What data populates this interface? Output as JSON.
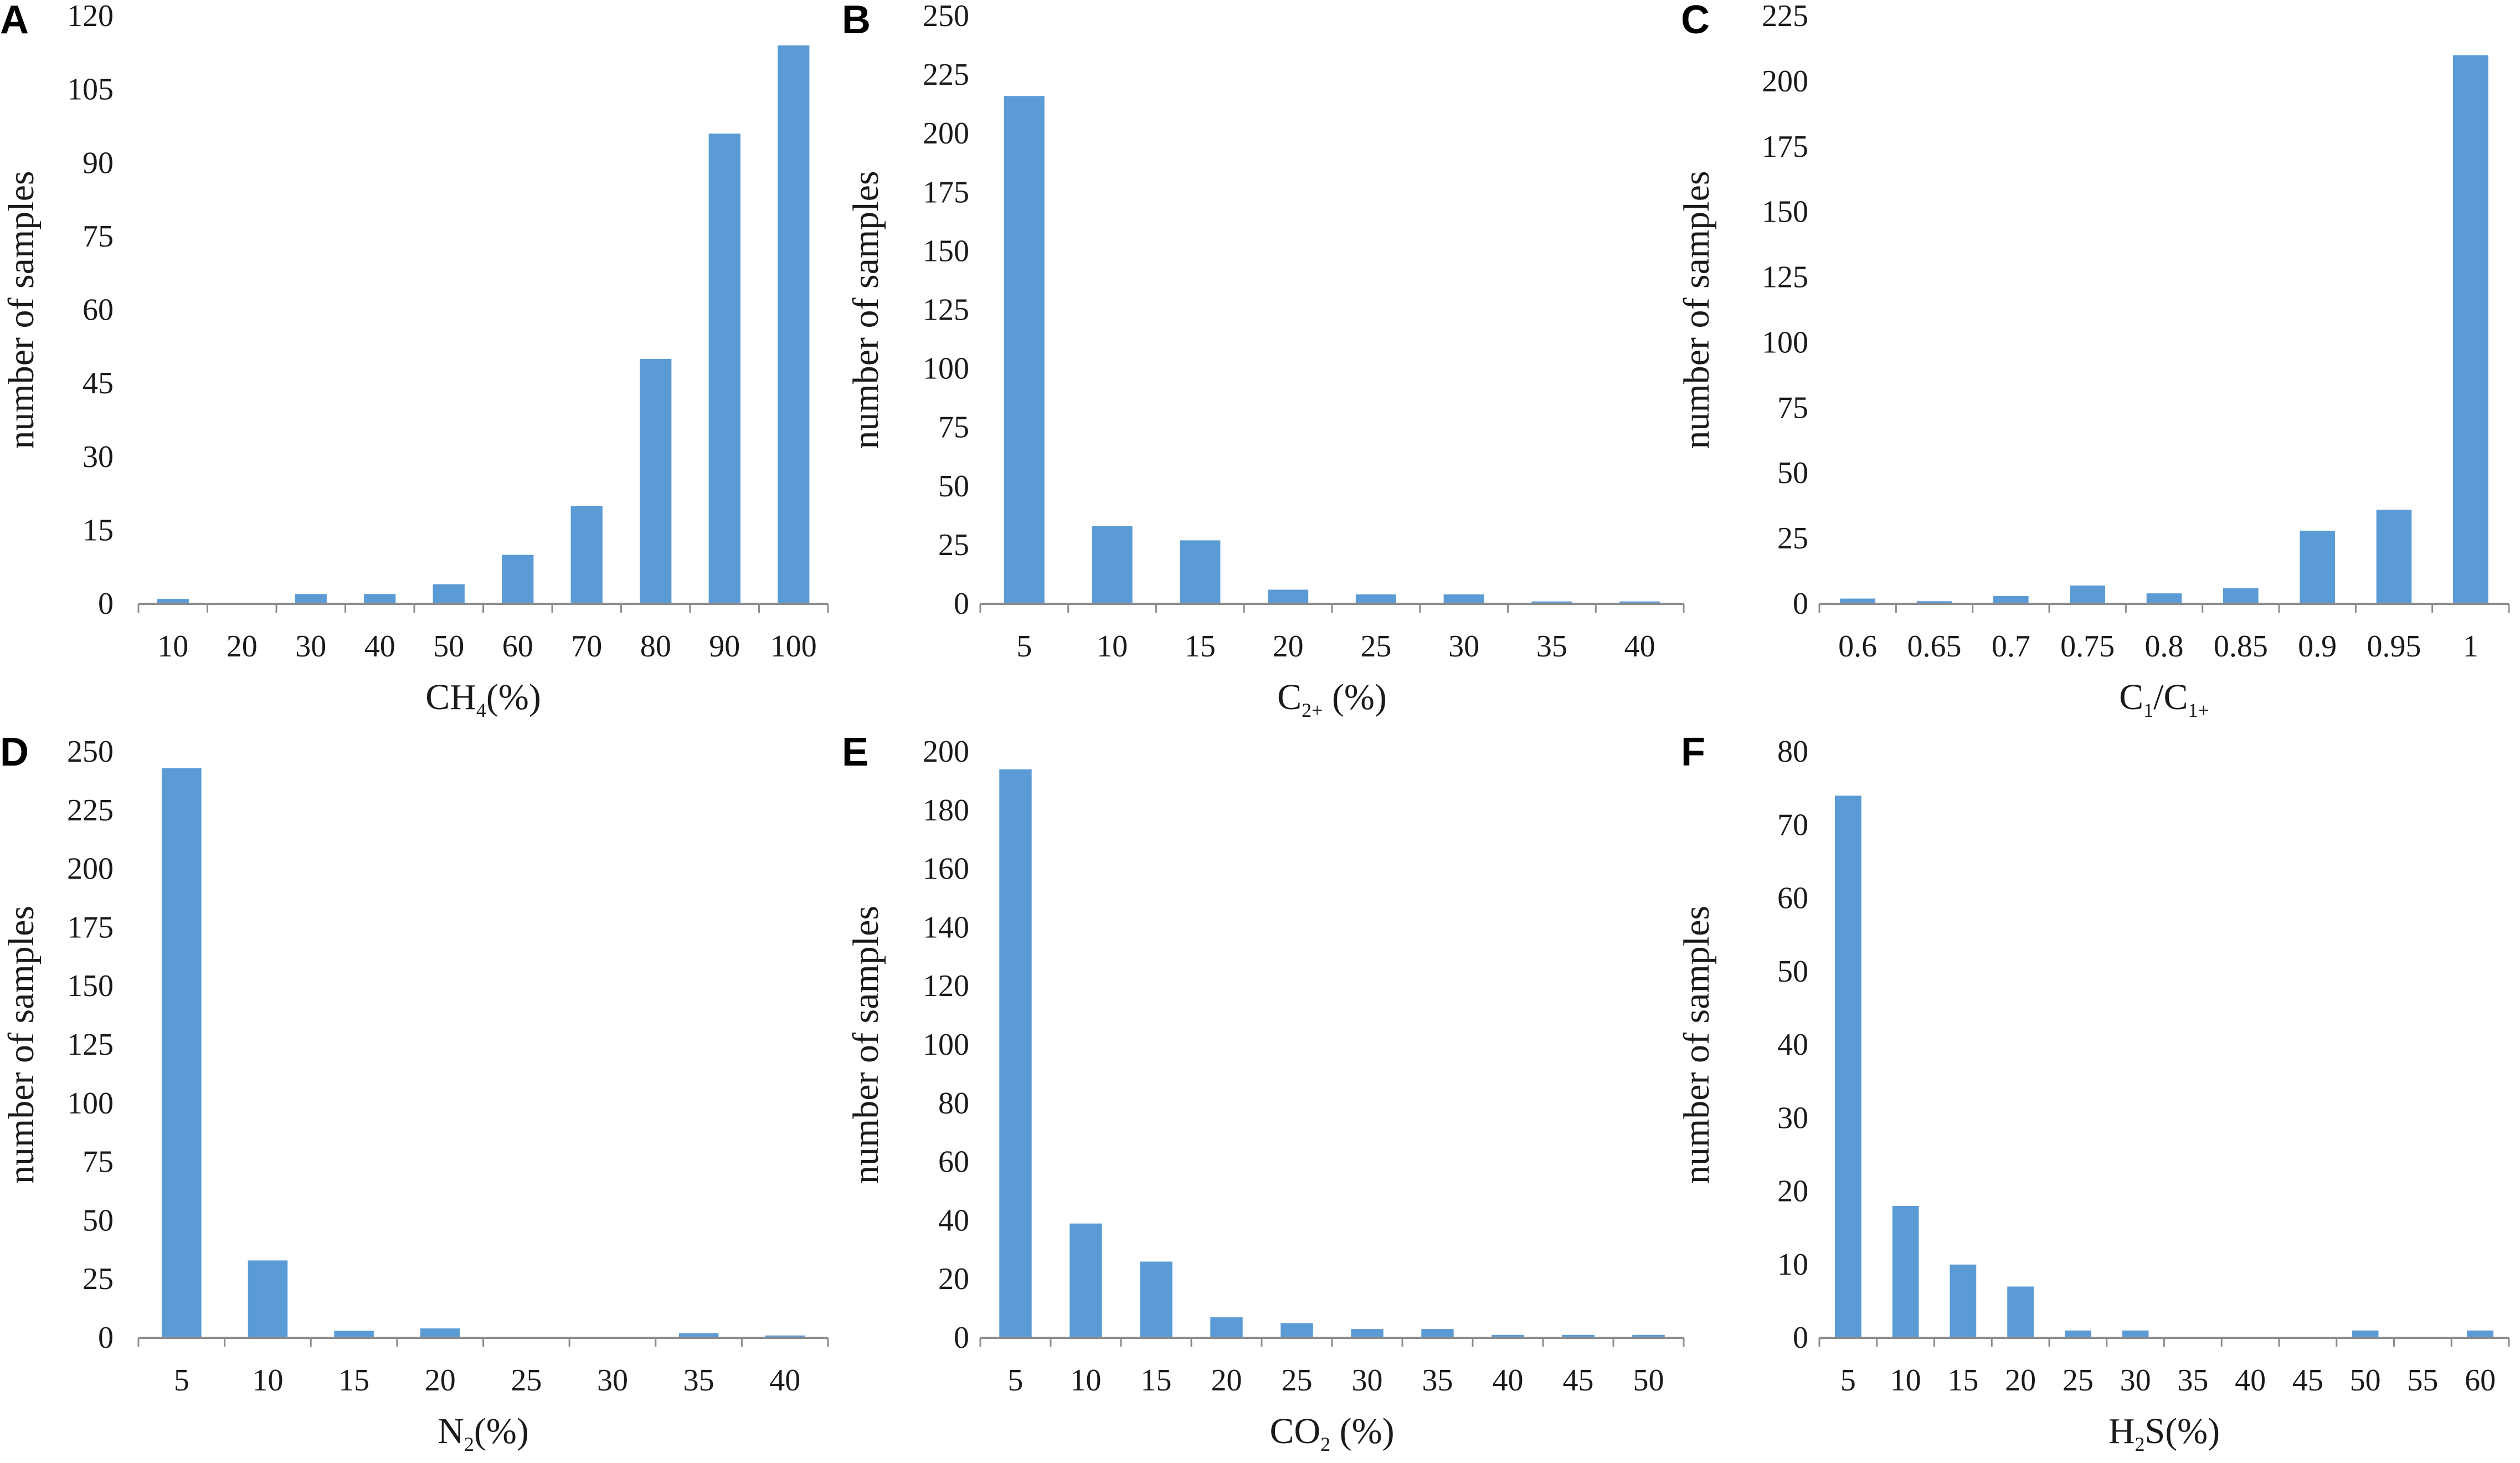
{
  "figure": {
    "accent_color": "#5b9bd5"
  },
  "chart_data": [
    {
      "panel": "A",
      "type": "bar",
      "categories": [
        "10",
        "20",
        "30",
        "40",
        "50",
        "60",
        "70",
        "80",
        "90",
        "100"
      ],
      "values": [
        1,
        0,
        2,
        2,
        4,
        10,
        20,
        50,
        96,
        114
      ],
      "xlabel": "CH4(%)",
      "xlabel_parts": {
        "pre": "CH",
        "sub": "4",
        "post": "(%)"
      },
      "ylabel": "number of samples",
      "ylim": [
        0,
        120
      ],
      "yticks": [
        "0",
        "15",
        "30",
        "45",
        "60",
        "75",
        "90",
        "105",
        "120"
      ]
    },
    {
      "panel": "B",
      "type": "bar",
      "categories": [
        "5",
        "10",
        "15",
        "20",
        "25",
        "30",
        "35",
        "40"
      ],
      "values": [
        216,
        33,
        27,
        6,
        4,
        4,
        1,
        1
      ],
      "xlabel": "C2+ (%)",
      "xlabel_parts": {
        "pre": "C",
        "sub": "2+",
        "post": " (%)"
      },
      "ylabel": "number of samples",
      "ylim": [
        0,
        250
      ],
      "yticks": [
        "0",
        "25",
        "50",
        "75",
        "100",
        "125",
        "150",
        "175",
        "200",
        "225",
        "250"
      ]
    },
    {
      "panel": "C",
      "type": "bar",
      "categories": [
        "0.6",
        "0.65",
        "0.7",
        "0.75",
        "0.8",
        "0.85",
        "0.9",
        "0.95",
        "1"
      ],
      "values": [
        2,
        1,
        3,
        7,
        4,
        6,
        28,
        36,
        210
      ],
      "xlabel": "C1/C1+",
      "xlabel_parts": {
        "pre": "C",
        "sub": "1",
        "post": "/C",
        "sub2": "1+"
      },
      "ylabel": "number of samples",
      "ylim": [
        0,
        225
      ],
      "yticks": [
        "0",
        "25",
        "50",
        "75",
        "100",
        "125",
        "150",
        "175",
        "200",
        "225"
      ]
    },
    {
      "panel": "D",
      "type": "bar",
      "categories": [
        "5",
        "10",
        "15",
        "20",
        "25",
        "30",
        "35",
        "40"
      ],
      "values": [
        243,
        33,
        3,
        4,
        0,
        0,
        2,
        1
      ],
      "xlabel": "N2(%)",
      "xlabel_parts": {
        "pre": "N",
        "sub": "2",
        "post": "(%)"
      },
      "ylabel": "number of samples",
      "ylim": [
        0,
        250
      ],
      "yticks": [
        "0",
        "25",
        "50",
        "75",
        "100",
        "125",
        "150",
        "175",
        "200",
        "225",
        "250"
      ]
    },
    {
      "panel": "E",
      "type": "bar",
      "categories": [
        "5",
        "10",
        "15",
        "20",
        "25",
        "30",
        "35",
        "40",
        "45",
        "50"
      ],
      "values": [
        194,
        39,
        26,
        7,
        5,
        3,
        3,
        1,
        1,
        1
      ],
      "xlabel": "CO2 (%)",
      "xlabel_parts": {
        "pre": "CO",
        "sub": "2",
        "post": " (%)"
      },
      "ylabel": "number of samples",
      "ylim": [
        0,
        200
      ],
      "yticks": [
        "0",
        "20",
        "40",
        "60",
        "80",
        "100",
        "120",
        "140",
        "160",
        "180",
        "200"
      ]
    },
    {
      "panel": "F",
      "type": "bar",
      "categories": [
        "5",
        "10",
        "15",
        "20",
        "25",
        "30",
        "35",
        "40",
        "45",
        "50",
        "55",
        "60"
      ],
      "values": [
        74,
        18,
        10,
        7,
        1,
        1,
        0,
        0,
        0,
        1,
        0,
        1
      ],
      "xlabel": "H2S(%)",
      "xlabel_parts": {
        "pre": "H",
        "sub": "2",
        "post": "S(%)"
      },
      "ylabel": "number of samples",
      "ylim": [
        0,
        80
      ],
      "yticks": [
        "0",
        "10",
        "20",
        "30",
        "40",
        "50",
        "60",
        "70",
        "80"
      ]
    }
  ]
}
